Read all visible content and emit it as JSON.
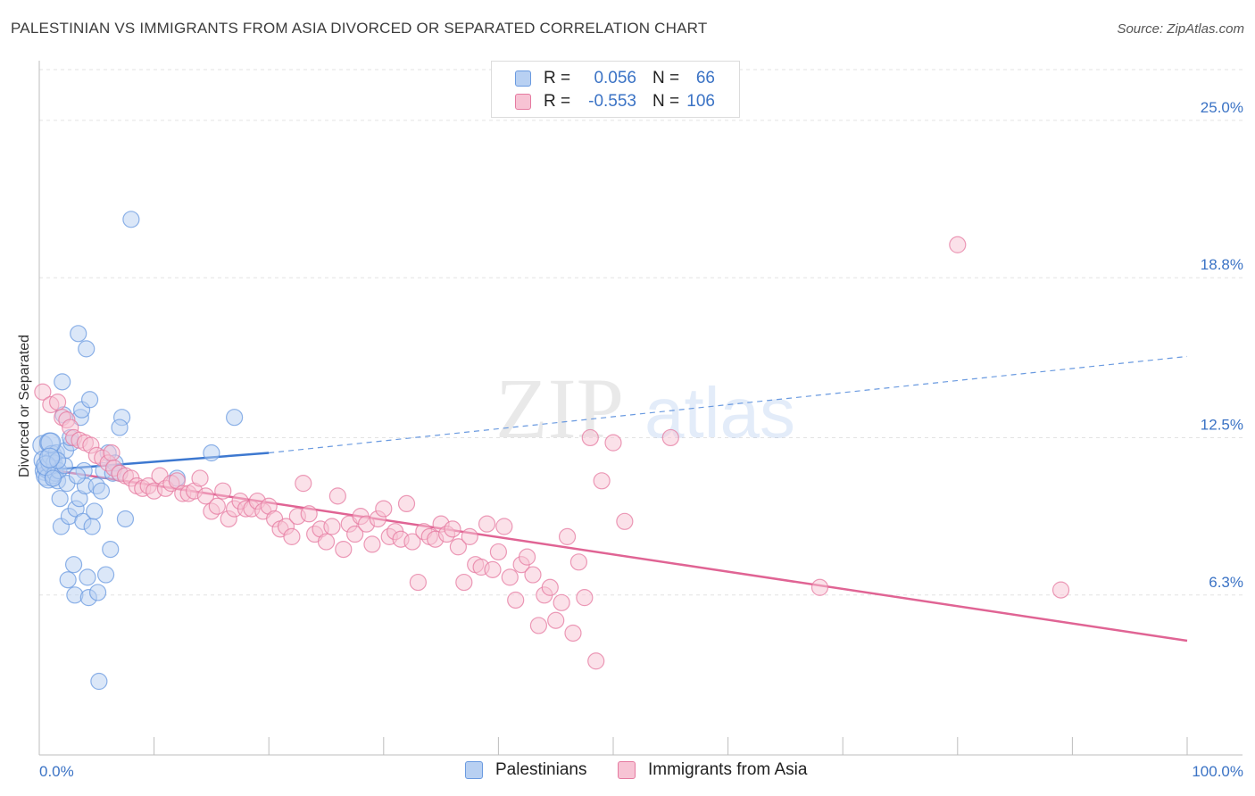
{
  "title": "PALESTINIAN VS IMMIGRANTS FROM ASIA DIVORCED OR SEPARATED CORRELATION CHART",
  "source": "Source: ZipAtlas.com",
  "watermark": {
    "zip": "ZIP",
    "atlas": "atlas"
  },
  "legend": {
    "rows": [
      {
        "r_label": "R =",
        "r_value": "0.056",
        "n_label": "N =",
        "n_value": "66",
        "color": "#6a9ae0",
        "fill": "#b8d0f2"
      },
      {
        "r_label": "R =",
        "r_value": "-0.553",
        "n_label": "N =",
        "n_value": "106",
        "color": "#e57aa0",
        "fill": "#f7c3d4"
      }
    ]
  },
  "bottom_legend": [
    {
      "label": "Palestinians",
      "color": "#6a9ae0",
      "fill": "#b8d0f2"
    },
    {
      "label": "Immigrants from Asia",
      "color": "#e57aa0",
      "fill": "#f7c3d4"
    }
  ],
  "chart_data": {
    "type": "scatter",
    "title": "PALESTINIAN VS IMMIGRANTS FROM ASIA DIVORCED OR SEPARATED CORRELATION CHART",
    "xlabel": "",
    "ylabel": "Divorced or Separated",
    "xlim": [
      0,
      100
    ],
    "ylim": [
      0,
      27
    ],
    "x_tick_labels": [
      "0.0%",
      "100.0%"
    ],
    "y_ticks": [
      6.3,
      12.5,
      18.8,
      25.0
    ],
    "y_tick_labels": [
      "6.3%",
      "12.5%",
      "18.8%",
      "25.0%"
    ],
    "grid": true,
    "legend_position": "top-center",
    "series": [
      {
        "name": "Palestinians",
        "color": "#6a9ae0",
        "fill": "#b8d0f2",
        "trend": {
          "x0": 0,
          "y0": 11.2,
          "x1": 20,
          "y1": 11.9,
          "dash_to_x": 100,
          "dash_to_y": 15.7
        },
        "points": [
          [
            0.3,
            12.2
          ],
          [
            0.4,
            11.6
          ],
          [
            0.5,
            11.2
          ],
          [
            0.6,
            11.0
          ],
          [
            0.7,
            11.3
          ],
          [
            0.8,
            10.9
          ],
          [
            0.9,
            12.3
          ],
          [
            1.0,
            11.5
          ],
          [
            1.1,
            11.8
          ],
          [
            1.2,
            11.0
          ],
          [
            1.3,
            11.5
          ],
          [
            1.4,
            11.1
          ],
          [
            1.5,
            11.9
          ],
          [
            1.6,
            10.8
          ],
          [
            1.7,
            11.2
          ],
          [
            1.8,
            10.1
          ],
          [
            1.9,
            9.0
          ],
          [
            2.0,
            14.7
          ],
          [
            2.1,
            13.4
          ],
          [
            2.2,
            11.4
          ],
          [
            2.3,
            12.0
          ],
          [
            2.4,
            10.7
          ],
          [
            2.5,
            6.9
          ],
          [
            2.6,
            9.4
          ],
          [
            2.8,
            12.3
          ],
          [
            3.0,
            7.5
          ],
          [
            3.1,
            6.3
          ],
          [
            3.2,
            9.7
          ],
          [
            3.4,
            16.6
          ],
          [
            3.5,
            10.1
          ],
          [
            3.6,
            13.3
          ],
          [
            3.7,
            13.6
          ],
          [
            3.8,
            9.2
          ],
          [
            3.9,
            11.2
          ],
          [
            4.0,
            10.6
          ],
          [
            4.1,
            16.0
          ],
          [
            4.2,
            7.0
          ],
          [
            4.3,
            6.2
          ],
          [
            4.4,
            14.0
          ],
          [
            4.6,
            9.0
          ],
          [
            4.8,
            9.6
          ],
          [
            5.0,
            10.6
          ],
          [
            5.1,
            6.4
          ],
          [
            5.2,
            2.9
          ],
          [
            5.4,
            10.4
          ],
          [
            5.6,
            11.2
          ],
          [
            5.8,
            7.1
          ],
          [
            6.0,
            11.9
          ],
          [
            6.2,
            8.1
          ],
          [
            6.4,
            11.1
          ],
          [
            6.6,
            11.5
          ],
          [
            7.0,
            11.1
          ],
          [
            7.2,
            13.3
          ],
          [
            7.0,
            12.9
          ],
          [
            7.5,
            9.3
          ],
          [
            8.0,
            21.1
          ],
          [
            12.0,
            10.9
          ],
          [
            15.0,
            11.9
          ],
          [
            17.0,
            13.3
          ],
          [
            1.0,
            12.3
          ],
          [
            0.6,
            11.4
          ],
          [
            1.2,
            10.9
          ],
          [
            2.7,
            12.5
          ],
          [
            3.3,
            11.0
          ],
          [
            1.6,
            11.6
          ],
          [
            0.9,
            11.7
          ]
        ]
      },
      {
        "name": "Immigrants from Asia",
        "color": "#e57aa0",
        "fill": "#f7c3d4",
        "trend": {
          "x0": 0,
          "y0": 11.3,
          "x1": 100,
          "y1": 4.5
        },
        "points": [
          [
            0.3,
            14.3
          ],
          [
            1.0,
            13.8
          ],
          [
            1.6,
            13.9
          ],
          [
            2.0,
            13.3
          ],
          [
            2.4,
            13.2
          ],
          [
            2.7,
            12.9
          ],
          [
            3.0,
            12.5
          ],
          [
            3.5,
            12.4
          ],
          [
            4.0,
            12.3
          ],
          [
            4.5,
            12.2
          ],
          [
            5.0,
            11.8
          ],
          [
            5.5,
            11.7
          ],
          [
            6.0,
            11.5
          ],
          [
            6.3,
            11.9
          ],
          [
            6.5,
            11.3
          ],
          [
            7.0,
            11.1
          ],
          [
            7.5,
            11.0
          ],
          [
            8.0,
            10.9
          ],
          [
            8.5,
            10.6
          ],
          [
            9.0,
            10.5
          ],
          [
            9.5,
            10.6
          ],
          [
            10.0,
            10.4
          ],
          [
            10.5,
            11.0
          ],
          [
            11.0,
            10.5
          ],
          [
            11.5,
            10.7
          ],
          [
            12.0,
            10.8
          ],
          [
            12.5,
            10.3
          ],
          [
            13.0,
            10.3
          ],
          [
            13.5,
            10.4
          ],
          [
            14.0,
            10.9
          ],
          [
            14.5,
            10.2
          ],
          [
            15.0,
            9.6
          ],
          [
            15.5,
            9.8
          ],
          [
            16.0,
            10.4
          ],
          [
            16.5,
            9.3
          ],
          [
            17.0,
            9.7
          ],
          [
            17.5,
            10.0
          ],
          [
            18.0,
            9.7
          ],
          [
            18.5,
            9.7
          ],
          [
            19.0,
            10.0
          ],
          [
            19.5,
            9.6
          ],
          [
            20.0,
            9.8
          ],
          [
            20.5,
            9.3
          ],
          [
            21.0,
            8.9
          ],
          [
            21.5,
            9.0
          ],
          [
            22.0,
            8.6
          ],
          [
            22.5,
            9.4
          ],
          [
            23.0,
            10.7
          ],
          [
            23.5,
            9.5
          ],
          [
            24.0,
            8.7
          ],
          [
            24.5,
            8.9
          ],
          [
            25.0,
            8.4
          ],
          [
            25.5,
            9.0
          ],
          [
            26.0,
            10.2
          ],
          [
            26.5,
            8.1
          ],
          [
            27.0,
            9.1
          ],
          [
            27.5,
            8.7
          ],
          [
            28.0,
            9.4
          ],
          [
            28.5,
            9.1
          ],
          [
            29.0,
            8.3
          ],
          [
            29.5,
            9.3
          ],
          [
            30.0,
            9.7
          ],
          [
            30.5,
            8.6
          ],
          [
            31.0,
            8.8
          ],
          [
            31.5,
            8.5
          ],
          [
            32.0,
            9.9
          ],
          [
            32.5,
            8.4
          ],
          [
            33.0,
            6.8
          ],
          [
            33.5,
            8.8
          ],
          [
            34.0,
            8.6
          ],
          [
            34.5,
            8.5
          ],
          [
            35.0,
            9.1
          ],
          [
            35.5,
            8.7
          ],
          [
            36.0,
            8.9
          ],
          [
            36.5,
            8.2
          ],
          [
            37.0,
            6.8
          ],
          [
            37.5,
            8.6
          ],
          [
            38.0,
            7.5
          ],
          [
            38.5,
            7.4
          ],
          [
            39.0,
            9.1
          ],
          [
            39.5,
            7.3
          ],
          [
            40.0,
            8.0
          ],
          [
            40.5,
            9.0
          ],
          [
            41.0,
            7.0
          ],
          [
            41.5,
            6.1
          ],
          [
            42.0,
            7.5
          ],
          [
            42.5,
            7.8
          ],
          [
            43.0,
            7.1
          ],
          [
            43.5,
            5.1
          ],
          [
            44.0,
            6.3
          ],
          [
            44.5,
            6.6
          ],
          [
            45.0,
            5.3
          ],
          [
            45.5,
            6.0
          ],
          [
            46.0,
            8.6
          ],
          [
            46.5,
            4.8
          ],
          [
            47.0,
            7.6
          ],
          [
            47.5,
            6.2
          ],
          [
            48.0,
            12.5
          ],
          [
            48.5,
            3.7
          ],
          [
            49.0,
            10.8
          ],
          [
            50.0,
            12.3
          ],
          [
            51.0,
            9.2
          ],
          [
            55.0,
            12.5
          ],
          [
            68.0,
            6.6
          ],
          [
            80.0,
            20.1
          ],
          [
            89.0,
            6.5
          ]
        ]
      }
    ]
  }
}
